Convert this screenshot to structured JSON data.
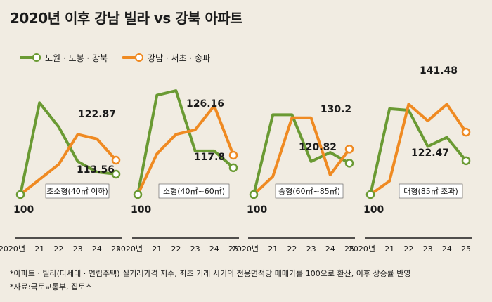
{
  "title": "2020년 이후 강남 빌라 vs 강북 아파트",
  "colors": {
    "green": "#6a9a33",
    "orange": "#ef8a22",
    "background": "#f1ece2"
  },
  "legend": [
    {
      "label": "노원 · 도봉 · 강북",
      "color": "#6a9a33"
    },
    {
      "label": "강남 · 서초 · 송파",
      "color": "#ef8a22"
    }
  ],
  "chart_data": [
    {
      "type": "line",
      "title": "초소형(40㎡ 이하)",
      "x": [
        "2020년",
        "21",
        "22",
        "23",
        "24",
        "25"
      ],
      "series": [
        {
          "name": "노원 · 도봉 · 강북",
          "values": [
            100,
            161,
            145,
            122,
            115,
            113.56
          ]
        },
        {
          "name": "강남 · 서초 · 송파",
          "values": [
            100,
            110,
            120,
            140,
            137,
            122.87
          ]
        }
      ],
      "end_labels": [
        "113.56",
        "122.87"
      ],
      "start_label": "100"
    },
    {
      "type": "line",
      "title": "소형(40㎡~60㎡)",
      "x": [
        "2020년",
        "21",
        "22",
        "23",
        "24",
        "25"
      ],
      "series": [
        {
          "name": "노원 · 도봉 · 강북",
          "values": [
            100,
            166,
            169,
            129,
            129,
            117.8
          ]
        },
        {
          "name": "강남 · 서초 · 송파",
          "values": [
            100,
            127,
            140,
            143,
            159,
            126.16
          ]
        }
      ],
      "end_labels": [
        "117.8",
        "126.16"
      ],
      "start_label": "100"
    },
    {
      "type": "line",
      "title": "중형(60㎡~85㎡)",
      "x": [
        "2020년",
        "21",
        "22",
        "23",
        "24",
        "25"
      ],
      "series": [
        {
          "name": "노원 · 도봉 · 강북",
          "values": [
            100,
            153,
            153,
            122,
            128,
            120.82
          ]
        },
        {
          "name": "강남 · 서초 · 송파",
          "values": [
            100,
            112,
            151,
            151,
            113,
            130.2
          ]
        }
      ],
      "end_labels": [
        "120.82",
        "130.2"
      ],
      "start_label": "100"
    },
    {
      "type": "line",
      "title": "대형(85㎡ 초과)",
      "x": [
        "2020년",
        "21",
        "22",
        "23",
        "24",
        "25"
      ],
      "series": [
        {
          "name": "노원 · 도봉 · 강북",
          "values": [
            100,
            157,
            156,
            132,
            138,
            122.47
          ]
        },
        {
          "name": "강남 · 서초 · 송파",
          "values": [
            100,
            109,
            160,
            149,
            160,
            141.48
          ]
        }
      ],
      "end_labels": [
        "122.47",
        "141.48"
      ],
      "start_label": "100"
    }
  ],
  "notes": [
    "*아파트 · 빌라(다세대 · 연립주택) 실거래가격 지수, 최초 거래 시기의 전용면적당 매매가를 100으로 환산, 이후 상승률 반영",
    "*자료:국토교통부, 집토스"
  ]
}
